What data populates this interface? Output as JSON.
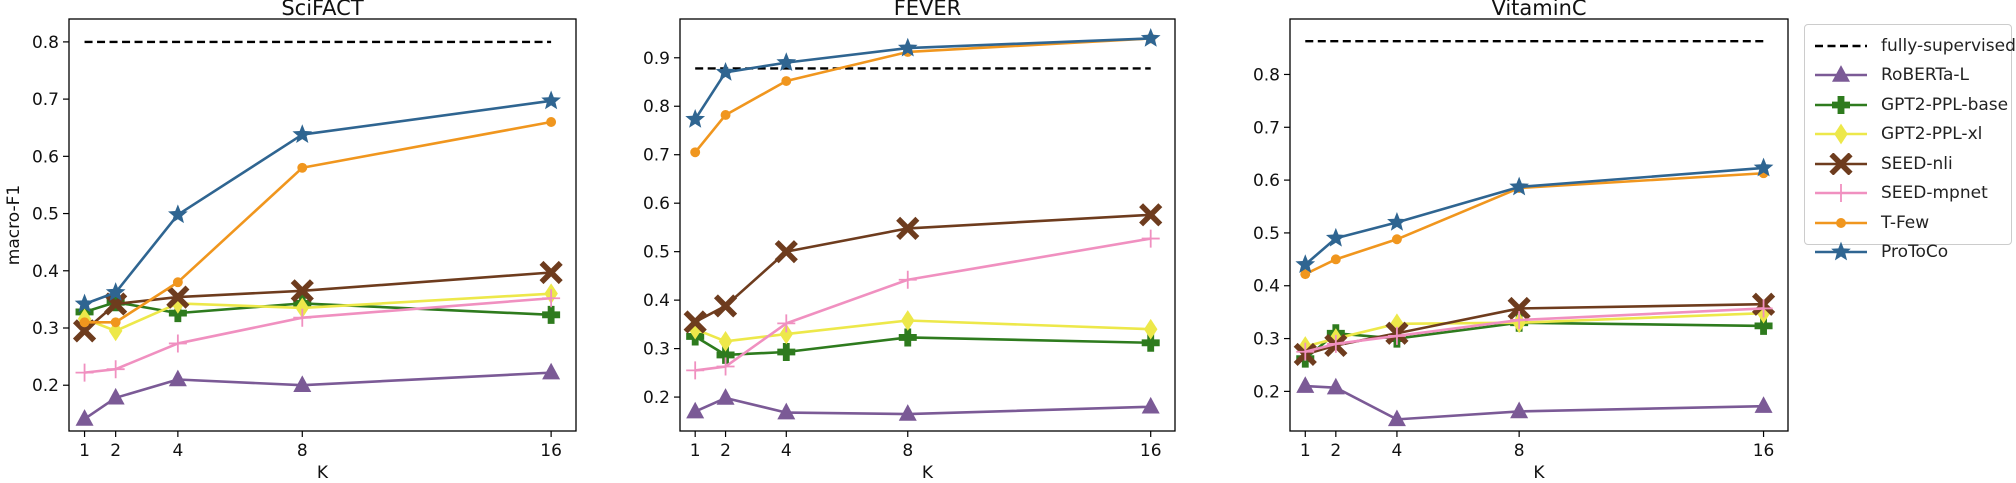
{
  "chart_data": [
    {
      "type": "line",
      "title": "SciFACT",
      "xlabel": "K",
      "ylabel": "macro-F1",
      "x": [
        1,
        2,
        4,
        8,
        16
      ],
      "xticks": [
        "1",
        "2",
        "4",
        "8",
        "16"
      ],
      "yticks": [
        "0.2",
        "0.3",
        "0.4",
        "0.5",
        "0.6",
        "0.7",
        "0.8"
      ],
      "ylim": [
        0.12,
        0.84
      ],
      "reference": {
        "name": "fully-supervised",
        "value": 0.8
      },
      "series": [
        {
          "name": "RoBERTa-L",
          "values": [
            0.141,
            0.178,
            0.21,
            0.2,
            0.222
          ]
        },
        {
          "name": "GPT2-PPL-base",
          "values": [
            0.328,
            0.345,
            0.326,
            0.343,
            0.323
          ]
        },
        {
          "name": "GPT2-PPL-xl",
          "values": [
            0.316,
            0.295,
            0.343,
            0.335,
            0.36
          ]
        },
        {
          "name": "SEED-nli",
          "values": [
            0.295,
            0.342,
            0.354,
            0.365,
            0.397
          ]
        },
        {
          "name": "SEED-mpnet",
          "values": [
            0.222,
            0.228,
            0.273,
            0.318,
            0.352
          ]
        },
        {
          "name": "T-Few",
          "values": [
            0.31,
            0.31,
            0.38,
            0.58,
            0.66
          ]
        },
        {
          "name": "ProToCo",
          "values": [
            0.342,
            0.362,
            0.498,
            0.638,
            0.697
          ]
        }
      ]
    },
    {
      "type": "line",
      "title": "FEVER",
      "xlabel": "K",
      "ylabel": "",
      "x": [
        1,
        2,
        4,
        8,
        16
      ],
      "xticks": [
        "1",
        "2",
        "4",
        "8",
        "16"
      ],
      "yticks": [
        "0.2",
        "0.3",
        "0.4",
        "0.5",
        "0.6",
        "0.7",
        "0.8",
        "0.9"
      ],
      "ylim": [
        0.13,
        0.98
      ],
      "reference": {
        "name": "fully-supervised",
        "value": 0.878
      },
      "series": [
        {
          "name": "RoBERTa-L",
          "values": [
            0.17,
            0.198,
            0.168,
            0.165,
            0.18
          ]
        },
        {
          "name": "GPT2-PPL-base",
          "values": [
            0.325,
            0.287,
            0.293,
            0.323,
            0.312
          ]
        },
        {
          "name": "GPT2-PPL-xl",
          "values": [
            0.34,
            0.315,
            0.33,
            0.358,
            0.34
          ]
        },
        {
          "name": "SEED-nli",
          "values": [
            0.355,
            0.388,
            0.5,
            0.548,
            0.576
          ]
        },
        {
          "name": "SEED-mpnet",
          "values": [
            0.255,
            0.263,
            0.352,
            0.442,
            0.527
          ]
        },
        {
          "name": "T-Few",
          "values": [
            0.705,
            0.782,
            0.852,
            0.912,
            0.94
          ]
        },
        {
          "name": "ProToCo",
          "values": [
            0.773,
            0.87,
            0.89,
            0.92,
            0.94
          ]
        }
      ]
    },
    {
      "type": "line",
      "title": "VitaminC",
      "xlabel": "K",
      "ylabel": "",
      "x": [
        1,
        2,
        4,
        8,
        16
      ],
      "xticks": [
        "1",
        "2",
        "4",
        "8",
        "16"
      ],
      "yticks": [
        "0.2",
        "0.3",
        "0.4",
        "0.5",
        "0.6",
        "0.7",
        "0.8"
      ],
      "ylim": [
        0.125,
        0.905
      ],
      "reference": {
        "name": "fully-supervised",
        "value": 0.863
      },
      "series": [
        {
          "name": "RoBERTa-L",
          "values": [
            0.21,
            0.207,
            0.147,
            0.162,
            0.172
          ]
        },
        {
          "name": "GPT2-PPL-base",
          "values": [
            0.262,
            0.31,
            0.3,
            0.33,
            0.324
          ]
        },
        {
          "name": "GPT2-PPL-xl",
          "values": [
            0.285,
            0.3,
            0.328,
            0.33,
            0.348
          ]
        },
        {
          "name": "SEED-nli",
          "values": [
            0.27,
            0.287,
            0.31,
            0.357,
            0.365
          ]
        },
        {
          "name": "SEED-mpnet",
          "values": [
            0.275,
            0.29,
            0.305,
            0.335,
            0.357
          ]
        },
        {
          "name": "T-Few",
          "values": [
            0.422,
            0.45,
            0.488,
            0.585,
            0.613
          ]
        },
        {
          "name": "ProToCo",
          "values": [
            0.44,
            0.49,
            0.52,
            0.587,
            0.623
          ]
        }
      ]
    }
  ],
  "legend": {
    "placement": "right",
    "entries": [
      {
        "key": "fully-supervised",
        "label": "fully-supervised",
        "color": "#000000",
        "marker": "none",
        "dashed": true
      },
      {
        "key": "RoBERTa-L",
        "label": "RoBERTa-L",
        "color": "#7B5A96",
        "marker": "triangle"
      },
      {
        "key": "GPT2-PPL-base",
        "label": "GPT2-PPL-base",
        "color": "#2E7B1E",
        "marker": "plus"
      },
      {
        "key": "GPT2-PPL-xl",
        "label": "GPT2-PPL-xl",
        "color": "#EDE84A",
        "marker": "diamond"
      },
      {
        "key": "SEED-nli",
        "label": "SEED-nli",
        "color": "#6E3C1E",
        "marker": "x"
      },
      {
        "key": "SEED-mpnet",
        "label": "SEED-mpnet",
        "color": "#F090C0",
        "marker": "thin-plus"
      },
      {
        "key": "T-Few",
        "label": "T-Few",
        "color": "#F0961E",
        "marker": "circle"
      },
      {
        "key": "ProToCo",
        "label": "ProToCo",
        "color": "#2F6591",
        "marker": "star"
      }
    ]
  }
}
